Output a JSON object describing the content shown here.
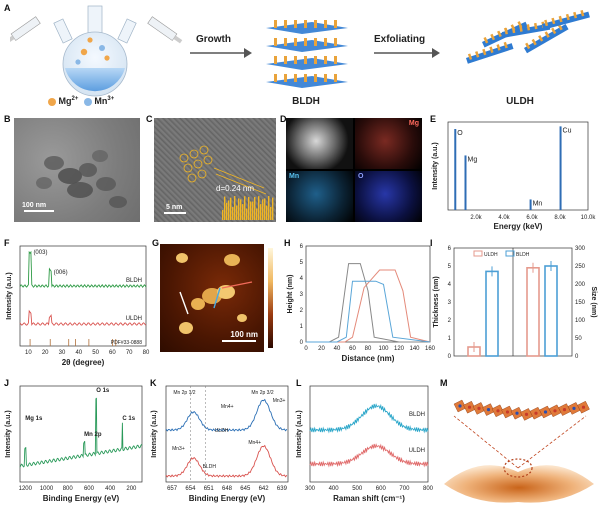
{
  "panel_labels": [
    "A",
    "B",
    "C",
    "D",
    "E",
    "F",
    "G",
    "H",
    "I",
    "J",
    "K",
    "L",
    "M"
  ],
  "panel_a": {
    "ion1": "Mg",
    "ion1_charge": "2+",
    "ion2": "Mn",
    "ion2_charge": "3+",
    "step1": "Growth",
    "step2": "Exfoliating",
    "product1": "BLDH",
    "product2": "ULDH",
    "colors": {
      "mg": "#f0a64a",
      "mn": "#8ab8e6",
      "sheet": "#2f7bd1",
      "rod": "#e9a33b"
    }
  },
  "panel_b": {
    "scalebar": "100 nm"
  },
  "panel_c": {
    "scalebar": "5 nm",
    "dspacing": "d=0.24 nm"
  },
  "panel_d": {
    "labels": [
      "Mg",
      "Mn",
      "O"
    ]
  },
  "panel_e": {
    "chart_data": {
      "type": "bar",
      "xlabel": "Energy (keV)",
      "ylabel": "Intensity (a.u.)",
      "xlim": [
        0,
        10000
      ],
      "xticks": [
        "2.0k",
        "4.0k",
        "6.0k",
        "8.0k",
        "10.0k"
      ],
      "peaks": [
        {
          "label": "O",
          "x": 520,
          "y": 0.92
        },
        {
          "label": "Mg",
          "x": 1250,
          "y": 0.62
        },
        {
          "label": "Mn",
          "x": 5900,
          "y": 0.12
        },
        {
          "label": "Cu",
          "x": 8040,
          "y": 0.95
        }
      ]
    }
  },
  "panel_f": {
    "chart_data": {
      "type": "line",
      "xlabel": "2θ (degree)",
      "ylabel": "Intensity (a.u.)",
      "xlim": [
        5,
        80
      ],
      "xticks": [
        "10",
        "20",
        "30",
        "40",
        "50",
        "60",
        "70",
        "80"
      ],
      "series": [
        {
          "name": "BLDH"
        },
        {
          "name": "ULDH"
        },
        {
          "name": "PDF#33-0888"
        }
      ],
      "annotations": [
        "(003)",
        "(006)"
      ]
    }
  },
  "panel_g": {
    "scalebar": "100 nm"
  },
  "panel_h": {
    "chart_data": {
      "type": "line",
      "xlabel": "Distance (nm)",
      "ylabel": "Height (nm)",
      "xlim": [
        0,
        160
      ],
      "ylim": [
        0,
        6
      ],
      "xticks": [
        "0",
        "20",
        "40",
        "60",
        "80",
        "100",
        "120",
        "140",
        "160"
      ],
      "yticks": [
        "0",
        "1",
        "2",
        "3",
        "4",
        "5",
        "6"
      ],
      "series": [
        {
          "color": "#888888",
          "x": [
            0,
            30,
            42,
            55,
            70,
            80,
            88,
            120,
            160
          ],
          "y": [
            0,
            0,
            0.3,
            4.9,
            4.9,
            3.2,
            0.3,
            0,
            0
          ]
        },
        {
          "color": "#e48a7a",
          "x": [
            0,
            50,
            60,
            75,
            95,
            115,
            125,
            135,
            160
          ],
          "y": [
            0,
            0,
            0.3,
            3.4,
            4.5,
            4.5,
            3.2,
            0.3,
            0
          ]
        },
        {
          "color": "#5aa6d8",
          "x": [
            0,
            40,
            52,
            60,
            90,
            100,
            112,
            160
          ],
          "y": [
            0,
            0,
            0.3,
            3.8,
            3.8,
            3.6,
            0.3,
            0
          ]
        }
      ]
    }
  },
  "panel_i": {
    "chart_data": {
      "type": "bar",
      "ylabel": "Thickness (nm)",
      "y2label": "Size (nm)",
      "ylim": [
        0,
        6
      ],
      "y2lim": [
        0,
        300
      ],
      "yticks": [
        "0",
        "1",
        "2",
        "3",
        "4",
        "5",
        "6"
      ],
      "y2ticks": [
        "0",
        "50",
        "100",
        "150",
        "200",
        "250",
        "300"
      ],
      "legend": [
        "ULDH",
        "BLDH"
      ],
      "groups": [
        {
          "metric": "thickness",
          "ULDH": 0.5,
          "BLDH": 4.7
        },
        {
          "metric": "size",
          "ULDH": 245,
          "BLDH": 250
        }
      ]
    }
  },
  "panel_j": {
    "chart_data": {
      "type": "line",
      "xlabel": "Binding Energy (eV)",
      "ylabel": "Intensity (a.u.)",
      "xticks": [
        "1200",
        "1000",
        "800",
        "600",
        "400",
        "200"
      ],
      "annotations": [
        "Mg 1s",
        "Mn 2p",
        "O 1s",
        "C 1s"
      ]
    }
  },
  "panel_k": {
    "chart_data": {
      "type": "line",
      "xlabel": "Binding Energy (eV)",
      "ylabel": "Intensity (a.u.)",
      "xticks": [
        "657",
        "654",
        "651",
        "648",
        "645",
        "642",
        "639"
      ],
      "annotations": [
        "Mn 2p",
        "1/2",
        "3/2",
        "Mn",
        "4+",
        "3+",
        "ULDH",
        "BLDH"
      ]
    }
  },
  "panel_l": {
    "chart_data": {
      "type": "line",
      "xlabel": "Raman shift (cm⁻¹)",
      "ylabel": "Intensity (a.u.)",
      "xticks": [
        "300",
        "400",
        "500",
        "600",
        "700",
        "800"
      ],
      "series": [
        {
          "name": "BLDH"
        },
        {
          "name": "ULDH"
        }
      ]
    }
  }
}
